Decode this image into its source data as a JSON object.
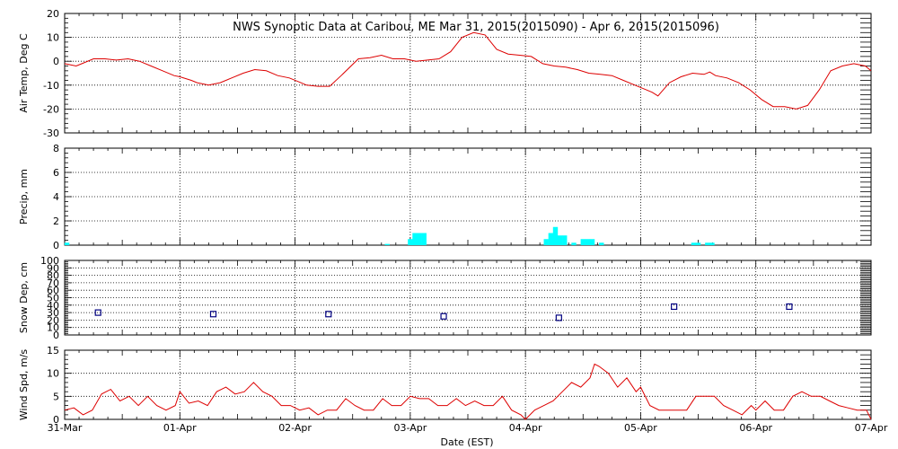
{
  "title": "NWS Synoptic Data at Caribou, ME   Mar 31, 2015(2015090) - Apr  6, 2015(2015096)",
  "xlabel": "Date (EST)",
  "x_ticks": [
    "31-Mar",
    "01-Apr",
    "02-Apr",
    "03-Apr",
    "04-Apr",
    "05-Apr",
    "06-Apr",
    "07-Apr"
  ],
  "colors": {
    "temp_line": "#dd0000",
    "precip_bar": "#00ffff",
    "snow_marker": "#000080",
    "wind_line": "#dd0000",
    "grid": "#000000"
  },
  "chart_data": [
    {
      "type": "line",
      "ylabel": "Air Temp, Deg C",
      "ylim": [
        -30,
        20
      ],
      "yticks": [
        -30,
        -20,
        -10,
        0,
        10,
        20
      ],
      "x_unit": "days since 31-Mar 00:00 EST",
      "series": [
        {
          "x": [
            0,
            0.1,
            0.15,
            0.25,
            0.35,
            0.45,
            0.55,
            0.65,
            0.75,
            0.85,
            0.95,
            1.0,
            1.1,
            1.15,
            1.25,
            1.35,
            1.45,
            1.55,
            1.65,
            1.75,
            1.85,
            1.95,
            2.05,
            2.1,
            2.2,
            2.3,
            2.4,
            2.55,
            2.65,
            2.75,
            2.85,
            2.95,
            3.05,
            3.15,
            3.25,
            3.35,
            3.45,
            3.55,
            3.65,
            3.75,
            3.85,
            3.95,
            4.05,
            4.15,
            4.25,
            4.35,
            4.45,
            4.55,
            4.65,
            4.75,
            4.85,
            4.95,
            5.05,
            5.1,
            5.15,
            5.25,
            5.35,
            5.45,
            5.55,
            5.6,
            5.65,
            5.75,
            5.85,
            5.95,
            6.05,
            6.15,
            6.25,
            6.35,
            6.45,
            6.55,
            6.65,
            6.75,
            6.85,
            6.95,
            7.0
          ],
          "values": [
            -1,
            -2,
            -1,
            1,
            1,
            0.5,
            1,
            0,
            -2,
            -4,
            -6,
            -6.5,
            -8,
            -9,
            -10,
            -9,
            -7,
            -5,
            -3.5,
            -4,
            -6,
            -7,
            -9,
            -10,
            -10.5,
            -10.5,
            -6,
            1,
            1.5,
            2.5,
            1,
            1,
            0,
            0.5,
            1,
            4,
            10,
            12,
            11,
            5,
            3,
            2.5,
            2,
            -1,
            -2,
            -2.5,
            -3.5,
            -5,
            -5.5,
            -6,
            -8,
            -10,
            -12,
            -13,
            -14.5,
            -9,
            -6.5,
            -5,
            -5.5,
            -4.5,
            -6,
            -7,
            -9,
            -12,
            -16,
            -19,
            -19,
            -20,
            -18.5,
            -12,
            -4,
            -2,
            -1,
            -2,
            -4
          ]
        }
      ]
    },
    {
      "type": "bar",
      "ylabel": "Precip, mm",
      "ylim": [
        0,
        8
      ],
      "yticks": [
        0,
        2,
        4,
        6,
        8
      ],
      "x_unit": "days since 31-Mar 00:00 EST",
      "bar_width_days": 0.042,
      "x": [
        0.02,
        2.8,
        3.0,
        3.04,
        3.08,
        3.12,
        4.18,
        4.22,
        4.26,
        4.3,
        4.34,
        4.42,
        4.5,
        4.54,
        4.58,
        4.66,
        5.46,
        5.5,
        5.58,
        5.62
      ],
      "values": [
        0.2,
        0.1,
        0.5,
        1.0,
        1.0,
        1.0,
        0.5,
        1.0,
        1.5,
        0.8,
        0.8,
        0.2,
        0.5,
        0.5,
        0.5,
        0.2,
        0.2,
        0.2,
        0.2,
        0.2
      ]
    },
    {
      "type": "scatter",
      "ylabel": "Snow Dep, cm",
      "ylim": [
        0,
        100
      ],
      "yticks": [
        0,
        10,
        20,
        30,
        40,
        50,
        60,
        70,
        80,
        90,
        100
      ],
      "x_unit": "days since 31-Mar 00:00 EST",
      "series": [
        {
          "x": [
            0.29,
            1.29,
            2.29,
            3.29,
            4.29,
            5.29,
            6.29
          ],
          "values": [
            30,
            28,
            28,
            25,
            23,
            38,
            38
          ]
        }
      ]
    },
    {
      "type": "line",
      "ylabel": "Wind Spd, m/s",
      "ylim": [
        0,
        15
      ],
      "yticks": [
        0,
        5,
        10,
        15
      ],
      "x_unit": "days since 31-Mar 00:00 EST",
      "series": [
        {
          "x": [
            0,
            0.08,
            0.16,
            0.24,
            0.32,
            0.4,
            0.48,
            0.56,
            0.64,
            0.72,
            0.8,
            0.88,
            0.96,
            1.0,
            1.08,
            1.16,
            1.24,
            1.32,
            1.4,
            1.48,
            1.56,
            1.64,
            1.72,
            1.8,
            1.88,
            1.96,
            2.04,
            2.12,
            2.2,
            2.28,
            2.36,
            2.44,
            2.52,
            2.6,
            2.68,
            2.76,
            2.84,
            2.92,
            3.0,
            3.08,
            3.16,
            3.24,
            3.32,
            3.4,
            3.48,
            3.56,
            3.64,
            3.72,
            3.8,
            3.88,
            3.96,
            4.0,
            4.08,
            4.16,
            4.24,
            4.32,
            4.4,
            4.48,
            4.56,
            4.6,
            4.64,
            4.72,
            4.8,
            4.88,
            4.96,
            5.0,
            5.08,
            5.16,
            5.24,
            5.32,
            5.4,
            5.48,
            5.56,
            5.64,
            5.72,
            5.8,
            5.88,
            5.96,
            6.0,
            6.08,
            6.16,
            6.24,
            6.32,
            6.4,
            6.48,
            6.56,
            6.64,
            6.72,
            6.8,
            6.88,
            6.96,
            7.0
          ],
          "values": [
            2,
            2.5,
            1,
            2,
            5.5,
            6.5,
            4,
            5,
            3,
            5,
            3,
            2,
            3,
            6,
            3.5,
            4,
            3,
            6,
            7,
            5.5,
            6,
            8,
            6,
            5,
            3,
            3,
            2,
            2.5,
            1,
            2,
            2,
            4.5,
            3,
            2,
            2,
            4.5,
            3,
            3,
            5,
            4.5,
            4.5,
            3,
            3,
            4.5,
            3,
            4,
            3,
            3,
            5,
            2,
            1,
            0,
            2,
            3,
            4,
            6,
            8,
            7,
            9,
            12,
            11.5,
            10,
            7,
            9,
            6,
            7,
            3,
            2,
            2,
            2,
            2,
            5,
            5,
            5,
            3,
            2,
            1,
            3,
            2,
            4,
            2,
            2,
            5,
            6,
            5,
            5,
            4,
            3,
            2.5,
            2,
            2,
            0
          ]
        }
      ]
    }
  ]
}
